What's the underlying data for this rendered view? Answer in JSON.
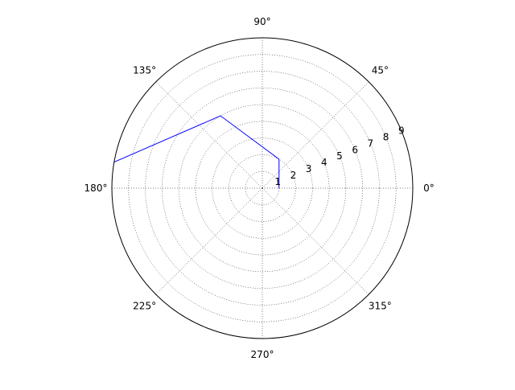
{
  "chart_data": {
    "type": "line",
    "projection": "polar",
    "theta_unit": "degrees",
    "angle_ticks": [
      0,
      45,
      90,
      135,
      180,
      225,
      270,
      315
    ],
    "angle_tick_labels": [
      "0°",
      "45°",
      "90°",
      "135°",
      "180°",
      "225°",
      "270°",
      "315°"
    ],
    "radial_ticks": [
      1,
      2,
      3,
      4,
      5,
      6,
      7,
      8,
      9
    ],
    "radial_tick_labels": [
      "1",
      "2",
      "3",
      "4",
      "5",
      "6",
      "7",
      "8",
      "9"
    ],
    "radial_label_angle": 22.5,
    "rlim": [
      0,
      9
    ],
    "grid": true,
    "grid_style": "dotted",
    "series": [
      {
        "color": "#0000ff",
        "theta": [
          0,
          60,
          120,
          170
        ],
        "r": [
          1,
          2,
          5,
          9
        ]
      }
    ]
  }
}
